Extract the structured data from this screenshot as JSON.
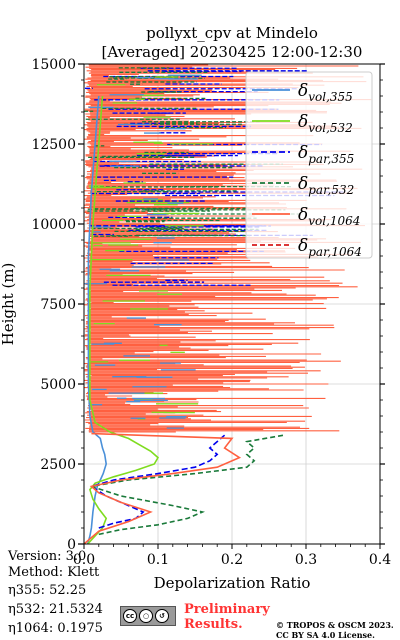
{
  "figure": {
    "title_line1": "pollyxt_cpv at Mindelo",
    "title_line2": "[Averaged] 20230425 12:00-12:30"
  },
  "info": {
    "version": "Version: 3.0",
    "method": "Method: Klett",
    "eta355": "η355:  52.25",
    "eta532": "η532: 21.5324",
    "eta1064": "η1064: 0.1975"
  },
  "footer": {
    "preliminary_line1": "Preliminary",
    "preliminary_line2": "Results.",
    "copyright_line1": "© TROPOS & OSCM 2023.",
    "copyright_line2": "CC BY SA 4.0 License.",
    "badge_icons": [
      "cc-icon",
      "by-icon",
      "sa-icon"
    ],
    "badge_label": "BY   SA"
  },
  "chart_data": {
    "type": "line",
    "xlabel": "Depolarization Ratio",
    "ylabel": "Height (m)",
    "xlim": [
      0.0,
      0.4
    ],
    "ylim": [
      0,
      15000
    ],
    "xticks": [
      "0.0",
      "0.1",
      "0.2",
      "0.3",
      "0.4"
    ],
    "yticks": [
      "0",
      "2500",
      "5000",
      "7500",
      "10000",
      "12500",
      "15000"
    ],
    "grid": true,
    "legend_position": "top-right",
    "series": [
      {
        "name": "δvol,355",
        "label_base": "δ",
        "label_sub": "vol,355",
        "color": "#4a90d9",
        "dash": "solid",
        "points": [
          [
            0.005,
            0
          ],
          [
            0.008,
            250
          ],
          [
            0.01,
            500
          ],
          [
            0.012,
            1000
          ],
          [
            0.015,
            1500
          ],
          [
            0.018,
            1800
          ],
          [
            0.022,
            2000
          ],
          [
            0.026,
            2200
          ],
          [
            0.03,
            2500
          ],
          [
            0.028,
            2800
          ],
          [
            0.025,
            3000
          ],
          [
            0.022,
            3300
          ],
          [
            0.012,
            3500
          ],
          [
            0.008,
            4000
          ],
          [
            0.006,
            5000
          ],
          [
            0.006,
            7000
          ],
          [
            0.006,
            9000
          ],
          [
            0.01,
            11000
          ],
          [
            0.015,
            12500
          ],
          [
            0.02,
            14000
          ]
        ]
      },
      {
        "name": "δvol,532",
        "label_base": "δ",
        "label_sub": "vol,532",
        "color": "#7fdc1f",
        "dash": "solid",
        "points": [
          [
            0.005,
            0
          ],
          [
            0.015,
            250
          ],
          [
            0.025,
            500
          ],
          [
            0.03,
            800
          ],
          [
            0.02,
            1100
          ],
          [
            0.012,
            1400
          ],
          [
            0.008,
            1700
          ],
          [
            0.015,
            1900
          ],
          [
            0.04,
            2100
          ],
          [
            0.07,
            2300
          ],
          [
            0.095,
            2500
          ],
          [
            0.1,
            2700
          ],
          [
            0.09,
            2900
          ],
          [
            0.075,
            3100
          ],
          [
            0.06,
            3300
          ],
          [
            0.035,
            3500
          ],
          [
            0.015,
            3800
          ],
          [
            0.008,
            4500
          ],
          [
            0.008,
            6000
          ],
          [
            0.008,
            8000
          ],
          [
            0.012,
            10000
          ],
          [
            0.02,
            12500
          ],
          [
            0.025,
            14000
          ]
        ]
      },
      {
        "name": "δpar,355",
        "label_base": "δ",
        "label_sub": "par,355",
        "color": "#0000ee",
        "dash": "6,3",
        "points": [
          [
            0.02,
            500
          ],
          [
            0.04,
            650
          ],
          [
            0.07,
            800
          ],
          [
            0.08,
            1000
          ],
          [
            0.06,
            1200
          ],
          [
            0.03,
            1500
          ],
          [
            0.01,
            1800
          ],
          [
            0.04,
            2000
          ],
          [
            0.1,
            2200
          ],
          [
            0.15,
            2400
          ],
          [
            0.17,
            2600
          ],
          [
            0.18,
            2800
          ],
          [
            0.17,
            3000
          ],
          [
            0.18,
            3200
          ],
          [
            0.19,
            3400
          ]
        ]
      },
      {
        "name": "δpar,532",
        "label_base": "δ",
        "label_sub": "par,532",
        "color": "#1a7a3a",
        "dash": "5,3",
        "points": [
          [
            0.02,
            300
          ],
          [
            0.05,
            450
          ],
          [
            0.1,
            600
          ],
          [
            0.14,
            800
          ],
          [
            0.16,
            1000
          ],
          [
            0.12,
            1200
          ],
          [
            0.05,
            1500
          ],
          [
            0.01,
            1800
          ],
          [
            0.06,
            2000
          ],
          [
            0.15,
            2200
          ],
          [
            0.22,
            2400
          ],
          [
            0.23,
            2600
          ],
          [
            0.22,
            2800
          ],
          [
            0.23,
            3000
          ],
          [
            0.22,
            3200
          ],
          [
            0.27,
            3400
          ]
        ]
      },
      {
        "name": "δvol,1064",
        "label_base": "δ",
        "label_sub": "vol,1064",
        "color": "#ff6040",
        "dash": "solid",
        "points": [
          [
            0.0,
            0
          ],
          [
            0.02,
            400
          ],
          [
            0.06,
            700
          ],
          [
            0.09,
            1000
          ],
          [
            0.05,
            1300
          ],
          [
            0.02,
            1600
          ],
          [
            0.01,
            1800
          ],
          [
            0.05,
            2000
          ],
          [
            0.12,
            2200
          ],
          [
            0.18,
            2400
          ],
          [
            0.21,
            2700
          ],
          [
            0.19,
            3000
          ],
          [
            0.2,
            3300
          ],
          [
            0.01,
            3450
          ]
        ]
      },
      {
        "name": "δpar,1064",
        "label_base": "δ",
        "label_sub": "par,1064",
        "color": "#d81b1b",
        "dash": "5,3",
        "points": []
      }
    ]
  }
}
